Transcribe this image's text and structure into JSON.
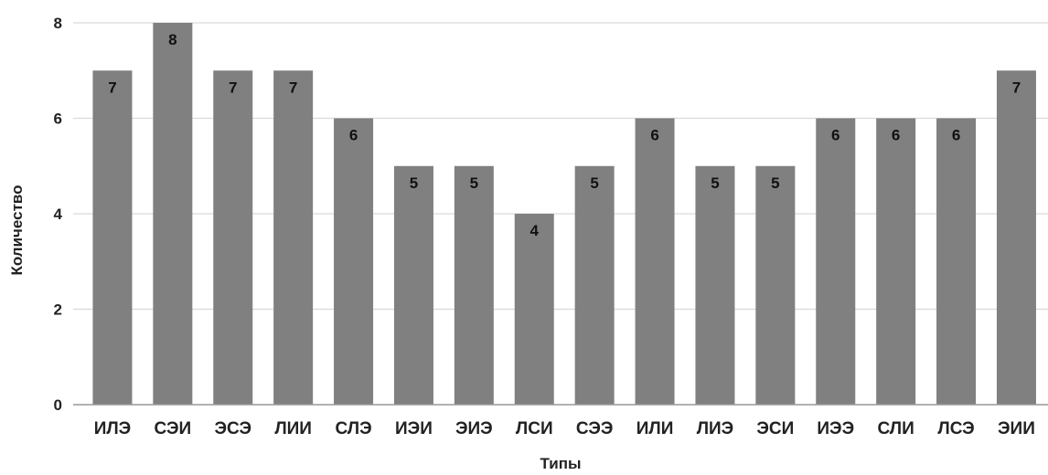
{
  "chart_data": {
    "type": "bar",
    "categories": [
      "ИЛЭ",
      "СЭИ",
      "ЭСЭ",
      "ЛИИ",
      "СЛЭ",
      "ИЭИ",
      "ЭИЭ",
      "ЛСИ",
      "СЭЭ",
      "ИЛИ",
      "ЛИЭ",
      "ЭСИ",
      "ИЭЭ",
      "СЛИ",
      "ЛСЭ",
      "ЭИИ"
    ],
    "values": [
      7,
      8,
      7,
      7,
      6,
      5,
      5,
      4,
      5,
      6,
      5,
      5,
      6,
      6,
      6,
      7
    ],
    "xlabel": "Типы",
    "ylabel": "Количество",
    "ylim": [
      0,
      8
    ],
    "yticks": [
      0,
      2,
      4,
      6,
      8
    ],
    "grid": true,
    "legend": "none",
    "data_labels": true,
    "colors": {
      "bar": "#808080",
      "grid": "#d9d9d9",
      "axis": "#999999"
    }
  }
}
